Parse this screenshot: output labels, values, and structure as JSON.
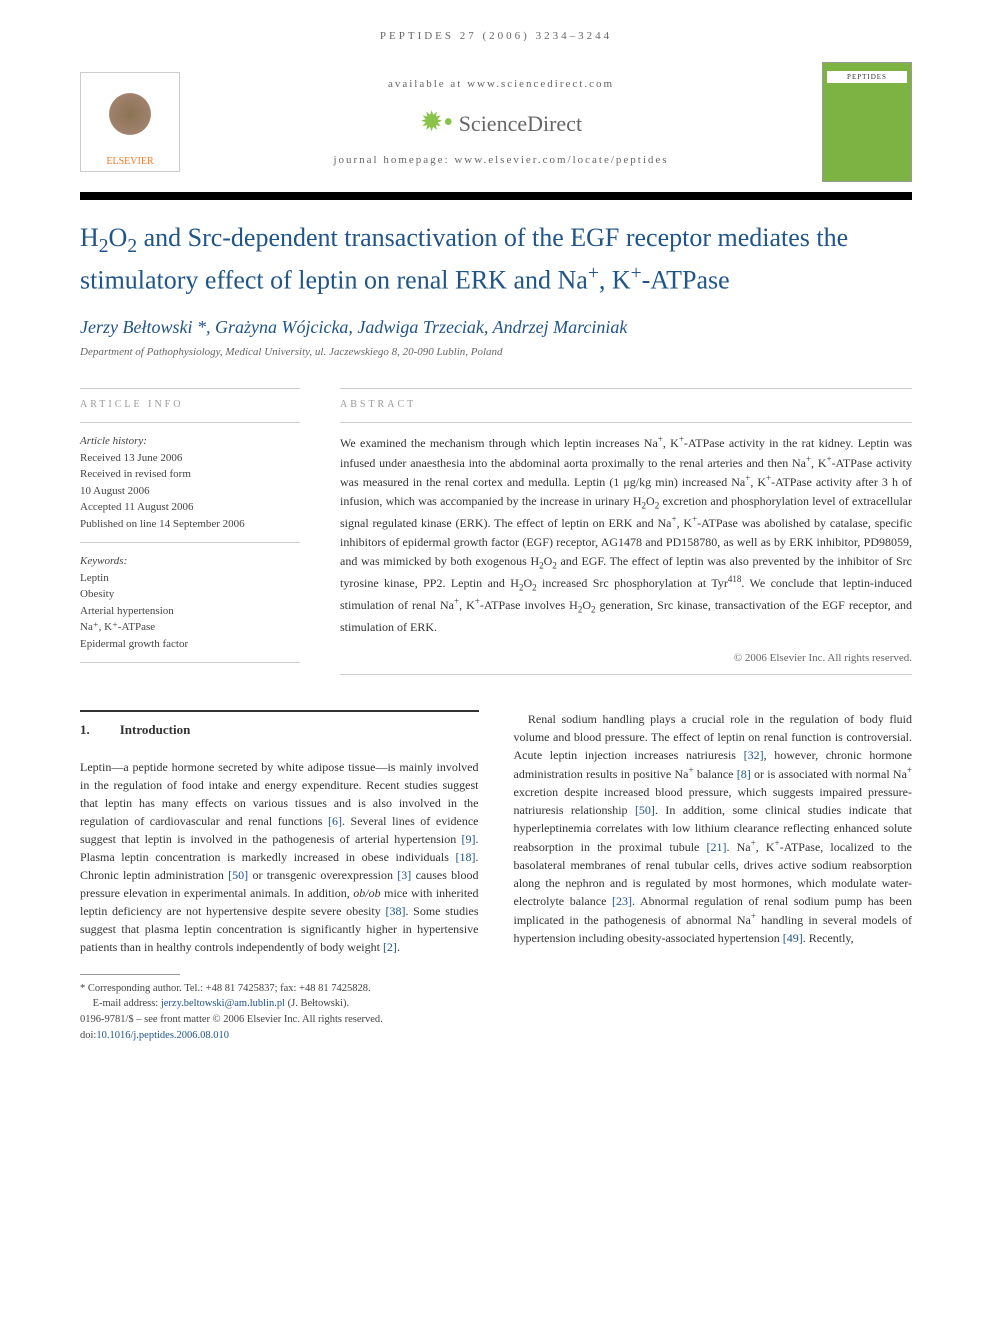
{
  "header": {
    "citation": "PEPTIDES 27 (2006) 3234–3244"
  },
  "banner": {
    "available_text": "available at www.sciencedirect.com",
    "sciencedirect": "ScienceDirect",
    "journal_homepage": "journal homepage: www.elsevier.com/locate/peptides",
    "elsevier": "ELSEVIER",
    "journal_name": "PEPTIDES"
  },
  "title": {
    "html": "H<sub>2</sub>O<sub>2</sub> and Src-dependent transactivation of the EGF receptor mediates the stimulatory effect of leptin on renal ERK and Na<sup>+</sup>, K<sup>+</sup>-ATPase"
  },
  "authors": "Jerzy Bełtowski *, Grażyna Wójcicka, Jadwiga Trzeciak, Andrzej Marciniak",
  "affiliation": "Department of Pathophysiology, Medical University, ul. Jaczewskiego 8, 20-090 Lublin, Poland",
  "article_info": {
    "label": "ARTICLE INFO",
    "history_label": "Article history:",
    "history": [
      "Received 13 June 2006",
      "Received in revised form",
      "10 August 2006",
      "Accepted 11 August 2006",
      "Published on line 14 September 2006"
    ],
    "keywords_label": "Keywords:",
    "keywords": [
      "Leptin",
      "Obesity",
      "Arterial hypertension",
      "Na⁺, K⁺-ATPase",
      "Epidermal growth factor"
    ]
  },
  "abstract": {
    "label": "ABSTRACT",
    "text_html": "We examined the mechanism through which leptin increases Na<sup>+</sup>, K<sup>+</sup>-ATPase activity in the rat kidney. Leptin was infused under anaesthesia into the abdominal aorta proximally to the renal arteries and then Na<sup>+</sup>, K<sup>+</sup>-ATPase activity was measured in the renal cortex and medulla. Leptin (1 μg/kg min) increased Na<sup>+</sup>, K<sup>+</sup>-ATPase activity after 3 h of infusion, which was accompanied by the increase in urinary H<sub>2</sub>O<sub>2</sub> excretion and phosphorylation level of extracellular signal regulated kinase (ERK). The effect of leptin on ERK and Na<sup>+</sup>, K<sup>+</sup>-ATPase was abolished by catalase, specific inhibitors of epidermal growth factor (EGF) receptor, AG1478 and PD158780, as well as by ERK inhibitor, PD98059, and was mimicked by both exogenous H<sub>2</sub>O<sub>2</sub> and EGF. The effect of leptin was also prevented by the inhibitor of Src tyrosine kinase, PP2. Leptin and H<sub>2</sub>O<sub>2</sub> increased Src phosphorylation at Tyr<sup>418</sup>. We conclude that leptin-induced stimulation of renal Na<sup>+</sup>, K<sup>+</sup>-ATPase involves H<sub>2</sub>O<sub>2</sub> generation, Src kinase, transactivation of the EGF receptor, and stimulation of ERK.",
    "copyright": "© 2006 Elsevier Inc. All rights reserved."
  },
  "body": {
    "section_num": "1.",
    "section_title": "Introduction",
    "col1_html": "Leptin—a peptide hormone secreted by white adipose tissue—is mainly involved in the regulation of food intake and energy expenditure. Recent studies suggest that leptin has many effects on various tissues and is also involved in the regulation of cardiovascular and renal functions <span class='ref-link'>[6]</span>. Several lines of evidence suggest that leptin is involved in the pathogenesis of arterial hypertension <span class='ref-link'>[9]</span>. Plasma leptin concentration is markedly increased in obese individuals <span class='ref-link'>[18]</span>. Chronic leptin administration <span class='ref-link'>[50]</span> or transgenic overexpression <span class='ref-link'>[3]</span> causes blood pressure elevation in experimental animals. In addition, <i>ob/ob</i> mice with inherited leptin deficiency are not hypertensive despite severe obesity <span class='ref-link'>[38]</span>. Some studies suggest that plasma leptin concentration is significantly higher in hypertensive patients than in healthy controls independently of body weight <span class='ref-link'>[2]</span>.",
    "col2_html": "Renal sodium handling plays a crucial role in the regulation of body fluid volume and blood pressure. The effect of leptin on renal function is controversial. Acute leptin injection increases natriuresis <span class='ref-link'>[32]</span>, however, chronic hormone administration results in positive Na<sup>+</sup> balance <span class='ref-link'>[8]</span> or is associated with normal Na<sup>+</sup> excretion despite increased blood pressure, which suggests impaired pressure-natriuresis relationship <span class='ref-link'>[50]</span>. In addition, some clinical studies indicate that hyperleptinemia correlates with low lithium clearance reflecting enhanced solute reabsorption in the proximal tubule <span class='ref-link'>[21]</span>. Na<sup>+</sup>, K<sup>+</sup>-ATPase, localized to the basolateral membranes of renal tubular cells, drives active sodium reabsorption along the nephron and is regulated by most hormones, which modulate water-electrolyte balance <span class='ref-link'>[23]</span>. Abnormal regulation of renal sodium pump has been implicated in the pathogenesis of abnormal Na<sup>+</sup> handling in several models of hypertension including obesity-associated hypertension <span class='ref-link'>[49]</span>. Recently,"
  },
  "footer": {
    "corresponding": "* Corresponding author. Tel.: +48 81 7425837; fax: +48 81 7425828.",
    "email_label": "E-mail address: ",
    "email": "jerzy.beltowski@am.lublin.pl",
    "email_suffix": " (J. Bełtowski).",
    "front_matter": "0196-9781/$ – see front matter © 2006 Elsevier Inc. All rights reserved.",
    "doi_label": "doi:",
    "doi": "10.1016/j.peptides.2006.08.010"
  },
  "colors": {
    "link": "#20558a",
    "accent_orange": "#f47920",
    "journal_green": "#7cb342"
  }
}
